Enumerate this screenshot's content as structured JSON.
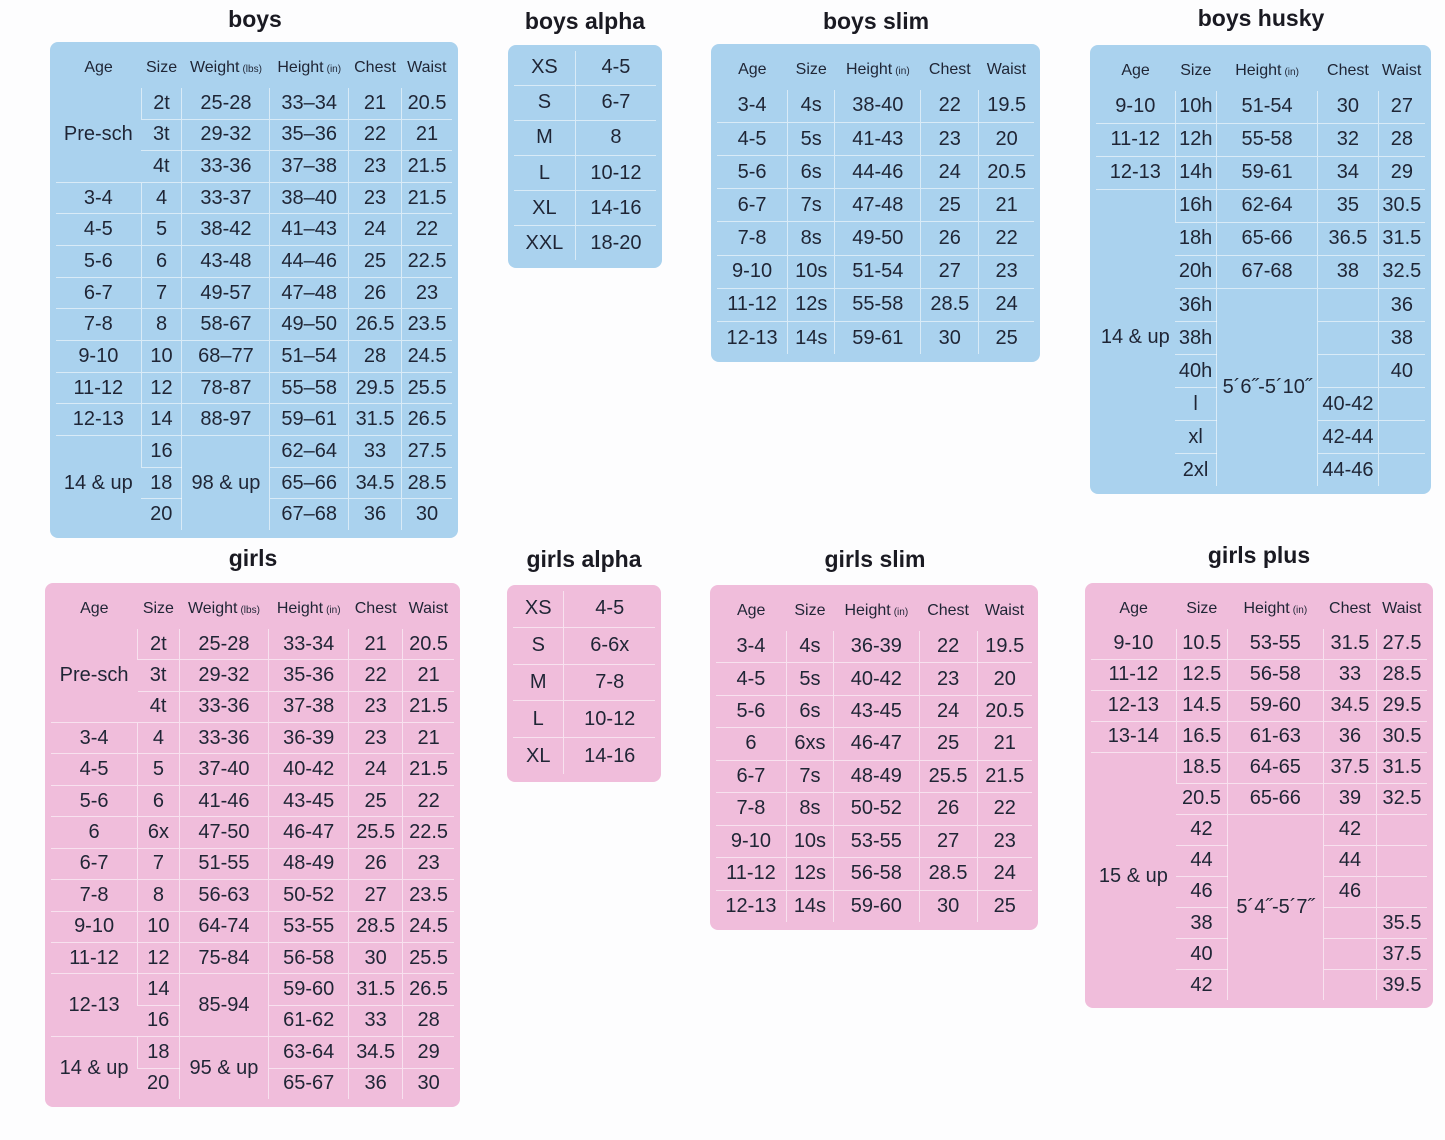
{
  "colors": {
    "boys": "#aad2ee",
    "girls": "#f0bddb",
    "text": "#1f2535"
  },
  "tables": {
    "boys": {
      "title": "boys",
      "headers": [
        {
          "label": "Age"
        },
        {
          "label": "Size"
        },
        {
          "label": "Weight",
          "unit": "(lbs)"
        },
        {
          "label": "Height",
          "unit": "(in)"
        },
        {
          "label": "Chest"
        },
        {
          "label": "Waist"
        }
      ],
      "rows": [
        [
          {
            "text": "Pre-sch",
            "rowspan": 3
          },
          "2t",
          "25-28",
          "33–34",
          "21",
          "20.5"
        ],
        [
          "3t",
          "29-32",
          "35–36",
          "22",
          "21"
        ],
        [
          "4t",
          "33-36",
          "37–38",
          "23",
          "21.5"
        ],
        [
          "3-4",
          "4",
          "33-37",
          "38–40",
          "23",
          "21.5"
        ],
        [
          "4-5",
          "5",
          "38-42",
          "41–43",
          "24",
          "22"
        ],
        [
          "5-6",
          "6",
          "43-48",
          "44–46",
          "25",
          "22.5"
        ],
        [
          "6-7",
          "7",
          "49-57",
          "47–48",
          "26",
          "23"
        ],
        [
          "7-8",
          "8",
          "58-67",
          "49–50",
          "26.5",
          "23.5"
        ],
        [
          "9-10",
          "10",
          "68–77",
          "51–54",
          "28",
          "24.5"
        ],
        [
          "11-12",
          "12",
          "78-87",
          "55–58",
          "29.5",
          "25.5"
        ],
        [
          "12-13",
          "14",
          "88-97",
          "59–61",
          "31.5",
          "26.5"
        ],
        [
          {
            "text": "14 & up",
            "rowspan": 3
          },
          "16",
          {
            "text": "98 & up",
            "rowspan": 3
          },
          "62–64",
          "33",
          "27.5"
        ],
        [
          "18",
          "65–66",
          "34.5",
          "28.5"
        ],
        [
          "20",
          "67–68",
          "36",
          "30"
        ]
      ]
    },
    "boys_alpha": {
      "title": "boys alpha",
      "rows": [
        [
          "XS",
          "4-5"
        ],
        [
          "S",
          "6-7"
        ],
        [
          "M",
          "8"
        ],
        [
          "L",
          "10-12"
        ],
        [
          "XL",
          "14-16"
        ],
        [
          "XXL",
          "18-20"
        ]
      ]
    },
    "boys_slim": {
      "title": "boys slim",
      "headers": [
        {
          "label": "Age"
        },
        {
          "label": "Size"
        },
        {
          "label": "Height",
          "unit": "(in)"
        },
        {
          "label": "Chest"
        },
        {
          "label": "Waist"
        }
      ],
      "rows": [
        [
          "3-4",
          "4s",
          "38-40",
          "22",
          "19.5"
        ],
        [
          "4-5",
          "5s",
          "41-43",
          "23",
          "20"
        ],
        [
          "5-6",
          "6s",
          "44-46",
          "24",
          "20.5"
        ],
        [
          "6-7",
          "7s",
          "47-48",
          "25",
          "21"
        ],
        [
          "7-8",
          "8s",
          "49-50",
          "26",
          "22"
        ],
        [
          "9-10",
          "10s",
          "51-54",
          "27",
          "23"
        ],
        [
          "11-12",
          "12s",
          "55-58",
          "28.5",
          "24"
        ],
        [
          "12-13",
          "14s",
          "59-61",
          "30",
          "25"
        ]
      ]
    },
    "boys_husky": {
      "title": "boys husky",
      "headers": [
        {
          "label": "Age"
        },
        {
          "label": "Size"
        },
        {
          "label": "Height",
          "unit": "(in)"
        },
        {
          "label": "Chest"
        },
        {
          "label": "Waist"
        }
      ],
      "rows": [
        [
          "9-10",
          "10h",
          "51-54",
          "30",
          "27"
        ],
        [
          "11-12",
          "12h",
          "55-58",
          "32",
          "28"
        ],
        [
          "12-13",
          "14h",
          "59-61",
          "34",
          "29"
        ],
        [
          {
            "text": "14 & up",
            "rowspan": 9
          },
          "16h",
          "62-64",
          "35",
          "30.5"
        ],
        [
          "18h",
          "65-66",
          "36.5",
          "31.5"
        ],
        [
          "20h",
          "67-68",
          "38",
          "32.5"
        ],
        [
          "36h",
          {
            "text": "5´6˝-5´10˝",
            "rowspan": 6
          },
          "",
          "36"
        ],
        [
          "38h",
          "",
          "38"
        ],
        [
          "40h",
          "",
          "40"
        ],
        [
          "l",
          "40-42",
          ""
        ],
        [
          "xl",
          "42-44",
          ""
        ],
        [
          "2xl",
          "44-46",
          ""
        ]
      ]
    },
    "girls": {
      "title": "girls",
      "headers": [
        {
          "label": "Age"
        },
        {
          "label": "Size"
        },
        {
          "label": "Weight",
          "unit": "(lbs)"
        },
        {
          "label": "Height",
          "unit": "(in)"
        },
        {
          "label": "Chest"
        },
        {
          "label": "Waist"
        }
      ],
      "rows": [
        [
          {
            "text": "Pre-sch",
            "rowspan": 3
          },
          "2t",
          "25-28",
          "33-34",
          "21",
          "20.5"
        ],
        [
          "3t",
          "29-32",
          "35-36",
          "22",
          "21"
        ],
        [
          "4t",
          "33-36",
          "37-38",
          "23",
          "21.5"
        ],
        [
          "3-4",
          "4",
          "33-36",
          "36-39",
          "23",
          "21"
        ],
        [
          "4-5",
          "5",
          "37-40",
          "40-42",
          "24",
          "21.5"
        ],
        [
          "5-6",
          "6",
          "41-46",
          "43-45",
          "25",
          "22"
        ],
        [
          "6",
          "6x",
          "47-50",
          "46-47",
          "25.5",
          "22.5"
        ],
        [
          "6-7",
          "7",
          "51-55",
          "48-49",
          "26",
          "23"
        ],
        [
          "7-8",
          "8",
          "56-63",
          "50-52",
          "27",
          "23.5"
        ],
        [
          "9-10",
          "10",
          "64-74",
          "53-55",
          "28.5",
          "24.5"
        ],
        [
          "11-12",
          "12",
          "75-84",
          "56-58",
          "30",
          "25.5"
        ],
        [
          {
            "text": "12-13",
            "rowspan": 2
          },
          "14",
          {
            "text": "85-94",
            "rowspan": 2
          },
          "59-60",
          "31.5",
          "26.5"
        ],
        [
          "16",
          "61-62",
          "33",
          "28"
        ],
        [
          {
            "text": "14 & up",
            "rowspan": 2
          },
          "18",
          {
            "text": "95 & up",
            "rowspan": 2
          },
          "63-64",
          "34.5",
          "29"
        ],
        [
          "20",
          "65-67",
          "36",
          "30"
        ]
      ]
    },
    "girls_alpha": {
      "title": "girls alpha",
      "rows": [
        [
          "XS",
          "4-5"
        ],
        [
          "S",
          "6-6x"
        ],
        [
          "M",
          "7-8"
        ],
        [
          "L",
          "10-12"
        ],
        [
          "XL",
          "14-16"
        ]
      ]
    },
    "girls_slim": {
      "title": "girls slim",
      "headers": [
        {
          "label": "Age"
        },
        {
          "label": "Size"
        },
        {
          "label": "Height",
          "unit": "(in)"
        },
        {
          "label": "Chest"
        },
        {
          "label": "Waist"
        }
      ],
      "rows": [
        [
          "3-4",
          "4s",
          "36-39",
          "22",
          "19.5"
        ],
        [
          "4-5",
          "5s",
          "40-42",
          "23",
          "20"
        ],
        [
          "5-6",
          "6s",
          "43-45",
          "24",
          "20.5"
        ],
        [
          "6",
          "6xs",
          "46-47",
          "25",
          "21"
        ],
        [
          "6-7",
          "7s",
          "48-49",
          "25.5",
          "21.5"
        ],
        [
          "7-8",
          "8s",
          "50-52",
          "26",
          "22"
        ],
        [
          "9-10",
          "10s",
          "53-55",
          "27",
          "23"
        ],
        [
          "11-12",
          "12s",
          "56-58",
          "28.5",
          "24"
        ],
        [
          "12-13",
          "14s",
          "59-60",
          "30",
          "25"
        ]
      ]
    },
    "girls_plus": {
      "title": "girls plus",
      "headers": [
        {
          "label": "Age"
        },
        {
          "label": "Size"
        },
        {
          "label": "Height",
          "unit": "(in)"
        },
        {
          "label": "Chest"
        },
        {
          "label": "Waist"
        }
      ],
      "rows": [
        [
          "9-10",
          "10.5",
          "53-55",
          "31.5",
          "27.5"
        ],
        [
          "11-12",
          "12.5",
          "56-58",
          "33",
          "28.5"
        ],
        [
          "12-13",
          "14.5",
          "59-60",
          "34.5",
          "29.5"
        ],
        [
          "13-14",
          "16.5",
          "61-63",
          "36",
          "30.5"
        ],
        [
          {
            "text": "15 & up",
            "rowspan": 8
          },
          "18.5",
          "64-65",
          "37.5",
          "31.5"
        ],
        [
          "20.5",
          "65-66",
          "39",
          "32.5"
        ],
        [
          "42",
          {
            "text": "5´4˝-5´7˝",
            "rowspan": 6
          },
          "42",
          ""
        ],
        [
          "44",
          "44",
          ""
        ],
        [
          "46",
          "46",
          ""
        ],
        [
          "38",
          "",
          "35.5"
        ],
        [
          "40",
          "",
          "37.5"
        ],
        [
          "42",
          "",
          "39.5"
        ]
      ]
    }
  }
}
